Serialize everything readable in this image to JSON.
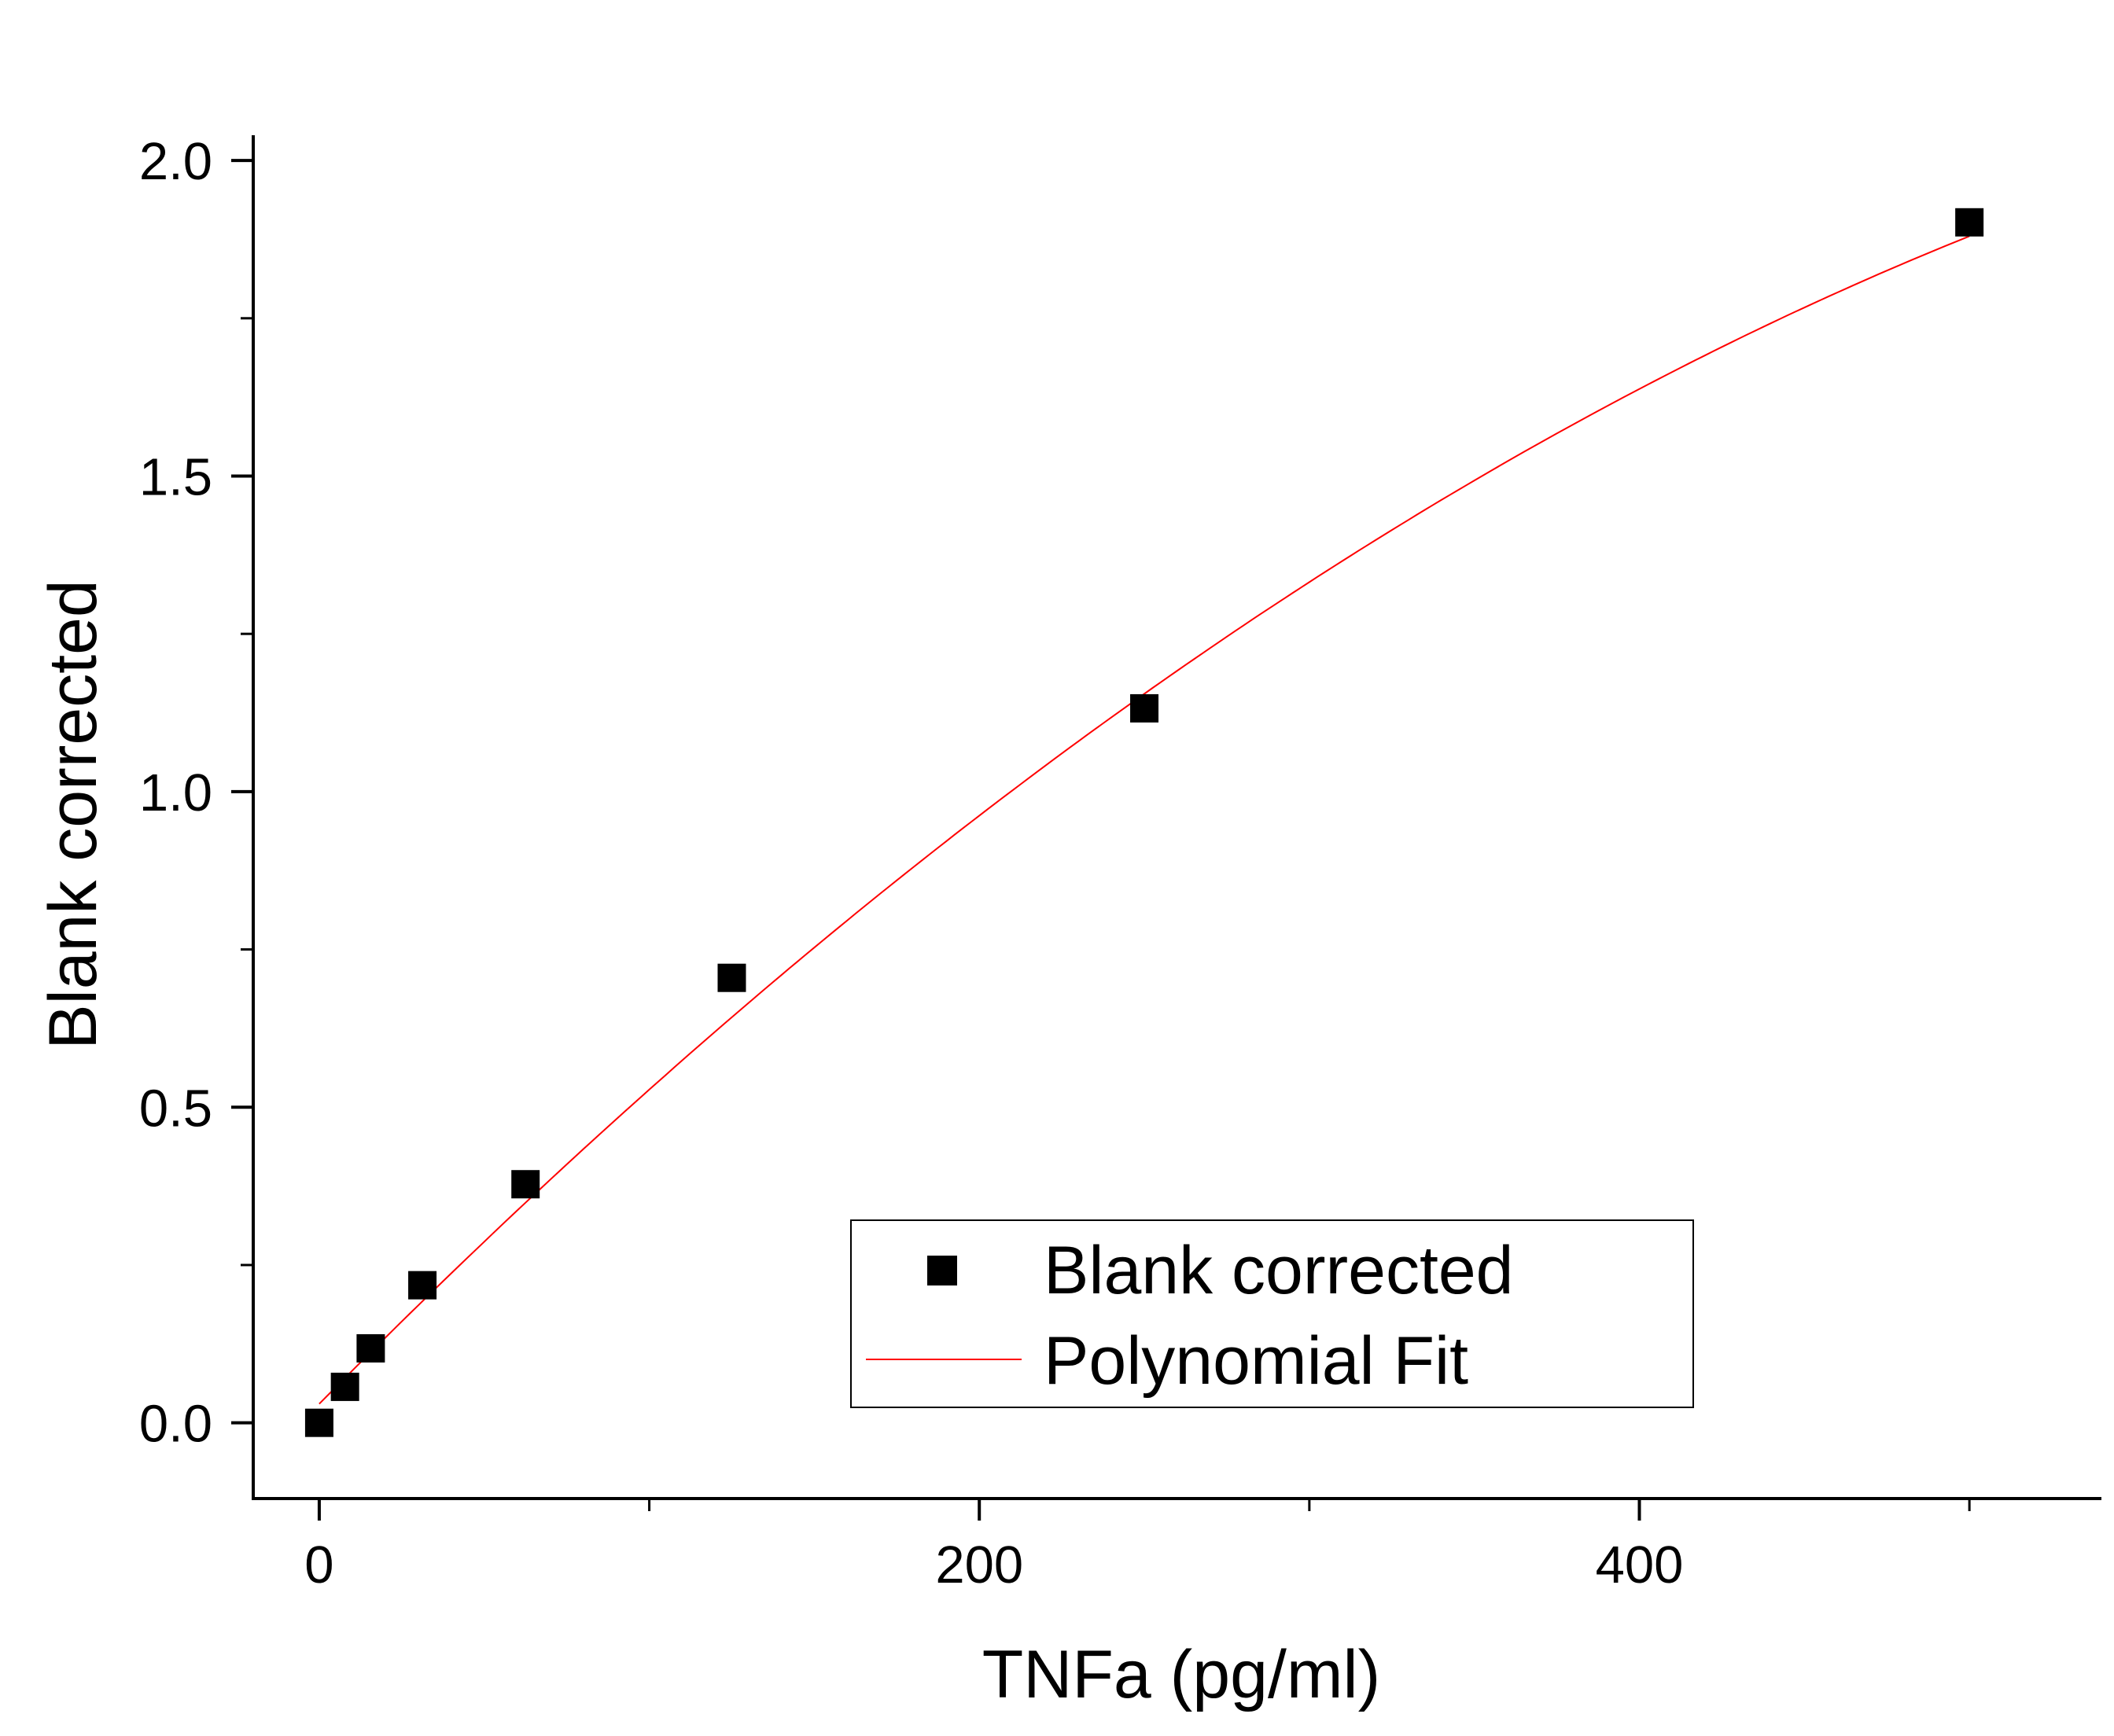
{
  "chart_data": {
    "type": "scatter",
    "title": "",
    "xlabel": "TNFa (pg/ml)",
    "ylabel": "Blank corrected",
    "xlim": [
      -20,
      540
    ],
    "ylim": [
      -0.12,
      2.04
    ],
    "x_major_ticks": [
      0,
      200,
      400
    ],
    "x_major_tick_labels": [
      "0",
      "200",
      "400"
    ],
    "x_minor_ticks": [
      100,
      300,
      500
    ],
    "y_major_ticks": [
      0.0,
      0.5,
      1.0,
      1.5,
      2.0
    ],
    "y_major_tick_labels": [
      "0.0",
      "0.5",
      "1.0",
      "1.5",
      "2.0"
    ],
    "y_minor_ticks": [
      0.25,
      0.75,
      1.25,
      1.75
    ],
    "grid": false,
    "legend_position": "bottom-right",
    "series": [
      {
        "name": "Blank corrected",
        "kind": "scatter",
        "marker": "square",
        "color": "#000000",
        "x": [
          0,
          7.8,
          15.6,
          31.25,
          62.5,
          125,
          250,
          500
        ],
        "y": [
          0.0,
          0.057,
          0.118,
          0.218,
          0.378,
          0.705,
          1.132,
          1.902
        ]
      },
      {
        "name": "Polynomial Fit",
        "kind": "line",
        "color": "#ff0000",
        "x_range": [
          0,
          500
        ],
        "coefficients": [
          0.03,
          0.0053,
          -3.2e-06
        ]
      }
    ]
  },
  "colors": {
    "axis": "#000000",
    "markers": "#000000",
    "fit_line": "#ff0000",
    "background": "#ffffff"
  }
}
